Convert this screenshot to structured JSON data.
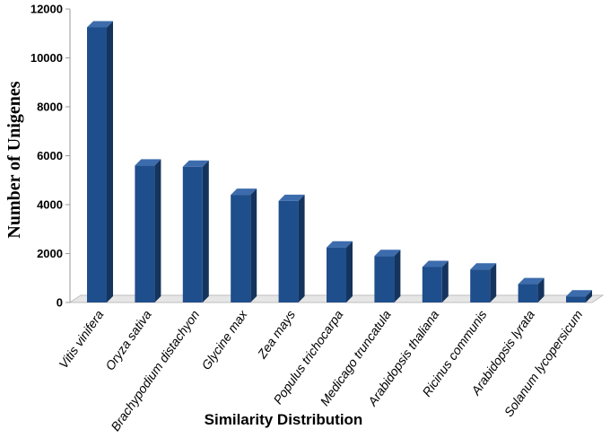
{
  "chart_data": {
    "type": "bar",
    "title": "",
    "xlabel": "Similarity Distribution",
    "ylabel": "Number of Unigenes",
    "ylim": [
      0,
      12000
    ],
    "yticks": [
      0,
      2000,
      4000,
      6000,
      8000,
      10000,
      12000
    ],
    "ytick_labels": [
      "0",
      "2000",
      "4000",
      "6000",
      "8000",
      "10000",
      "12000"
    ],
    "grid": false,
    "legend": "none",
    "style": "3d-bar",
    "categories": [
      "Vitis vinifera",
      "Oryza sativa",
      "Brachypodium distachyon",
      "Glycine max",
      "Zea mays",
      "Populus trichocarpa",
      "Medicago truncatula",
      "Arabidopsis thaliana",
      "Ricinus communis",
      "Arabidopsis lyrata",
      "Solanum lycopersicum"
    ],
    "values": [
      11250,
      5600,
      5550,
      4400,
      4150,
      2250,
      1900,
      1450,
      1350,
      750,
      250
    ],
    "colors": {
      "bar_front": "#1f4e8c",
      "bar_side": "#14345e",
      "bar_top": "#3d6cad",
      "floor": "#e6e6e6",
      "axis": "#9a9a9a"
    }
  }
}
